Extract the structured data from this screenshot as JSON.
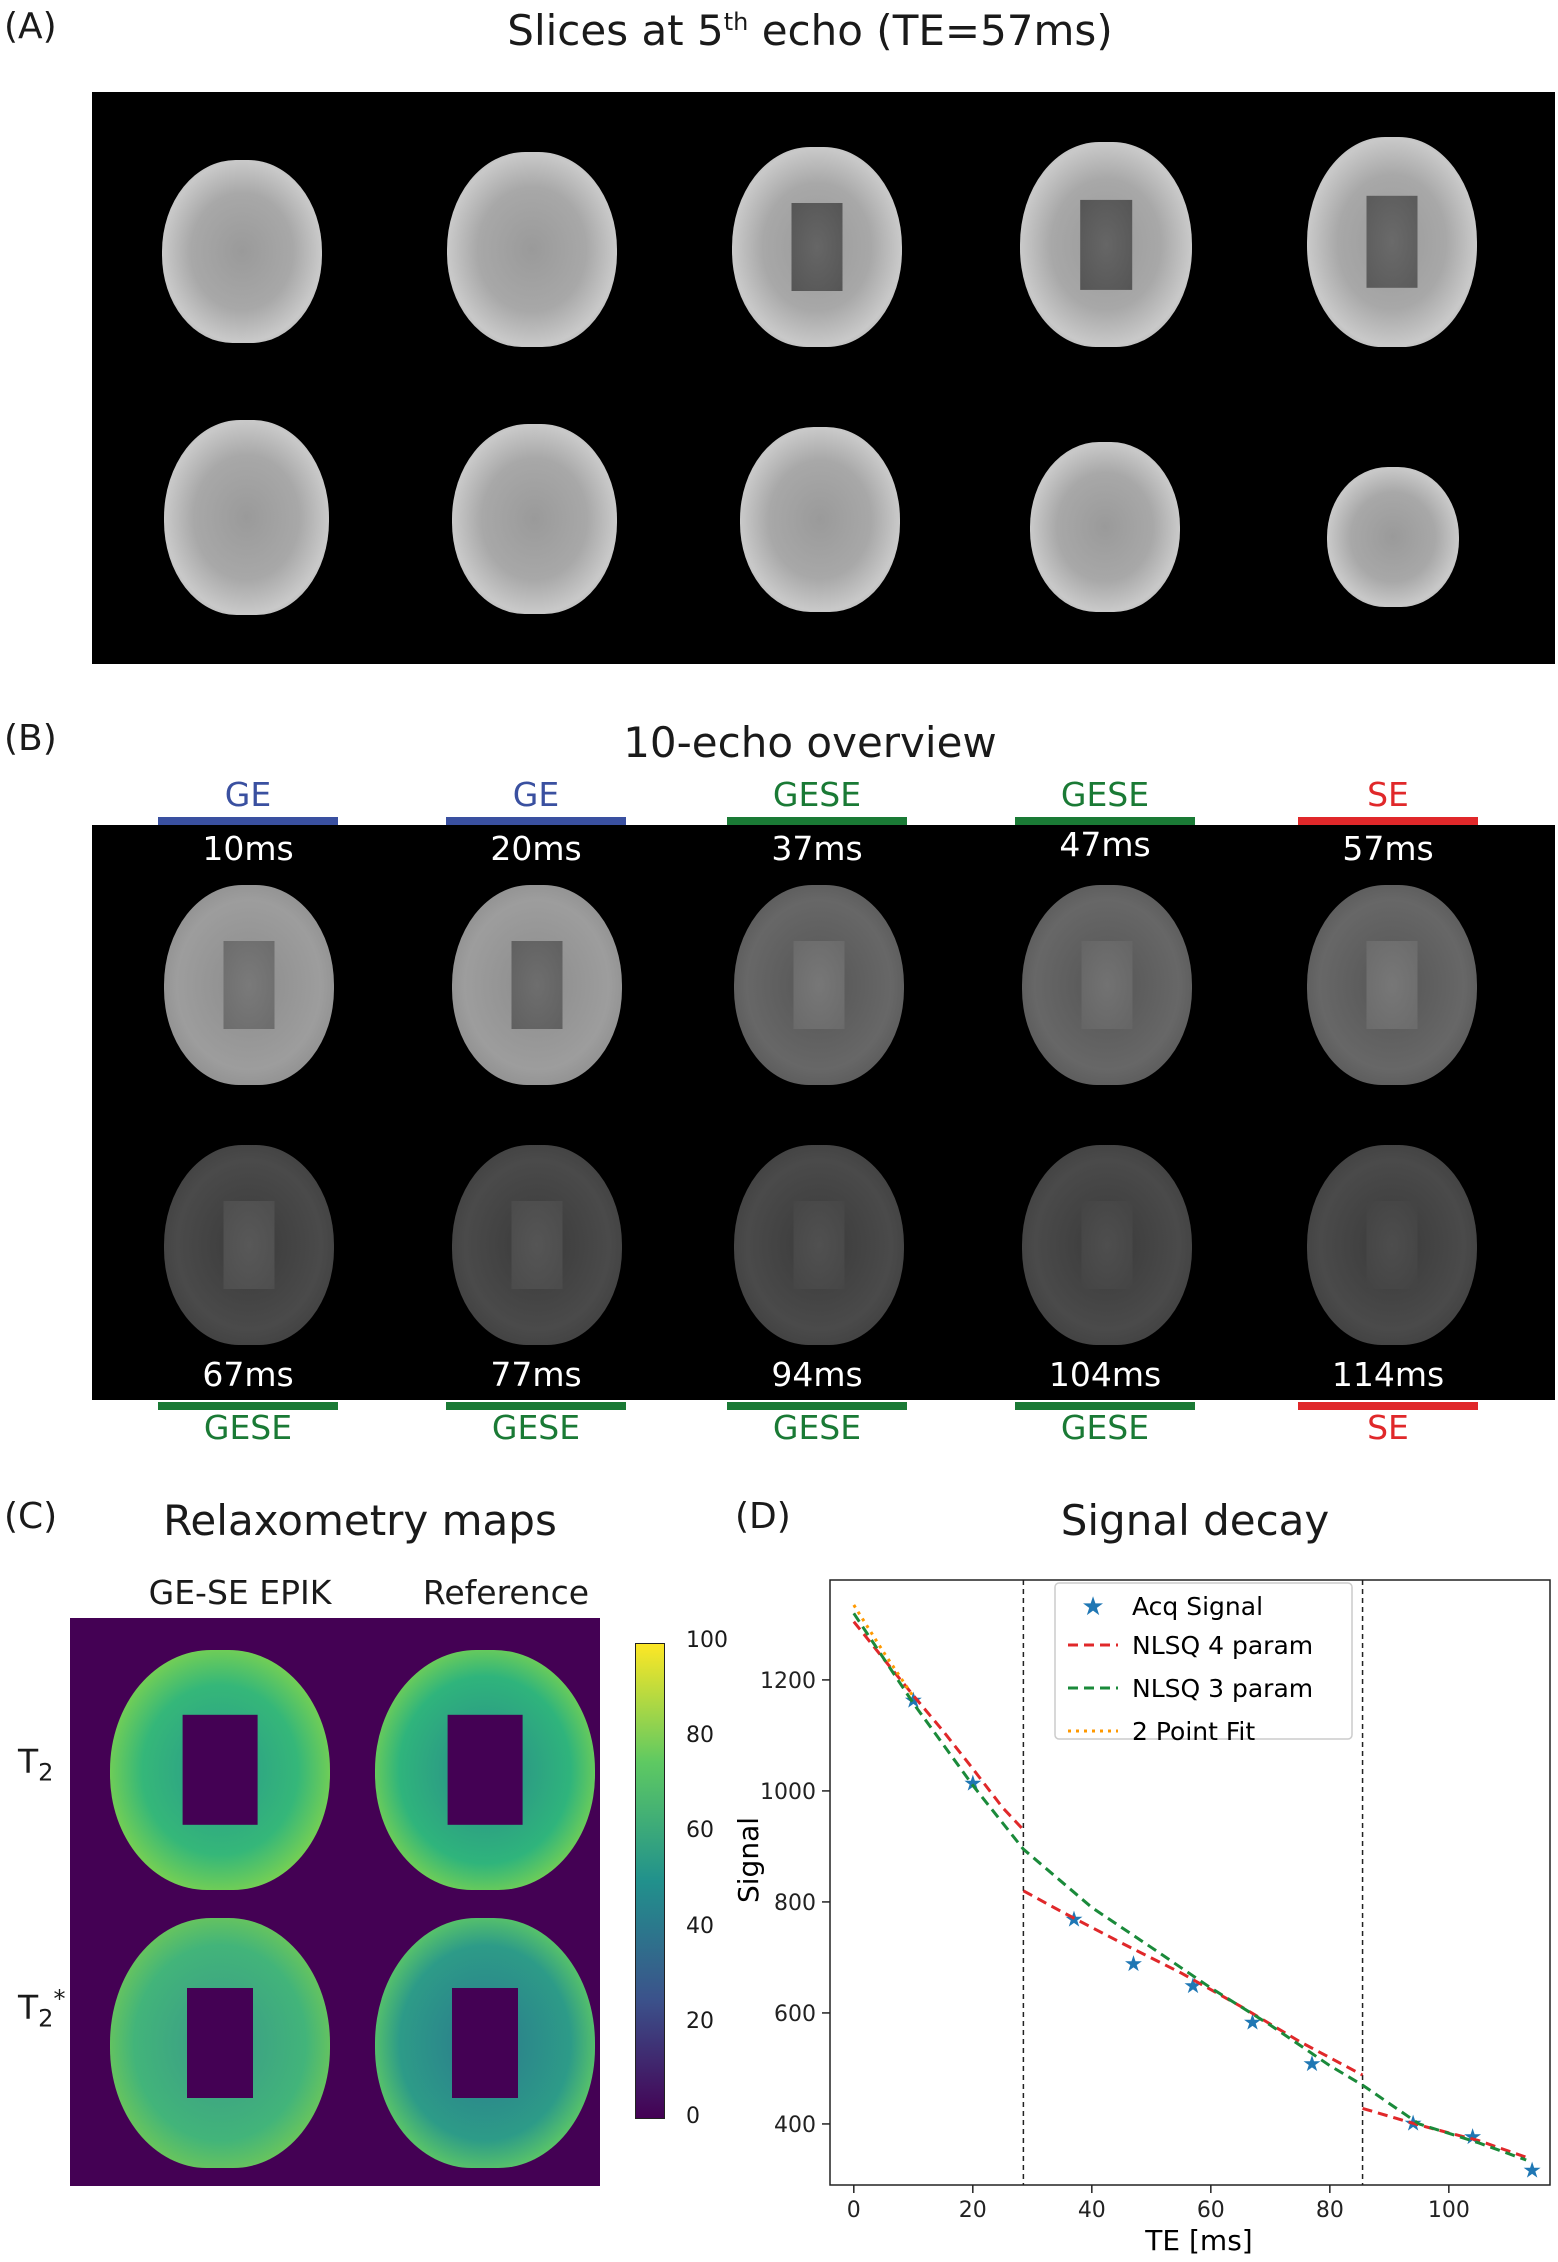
{
  "panelA": {
    "letter": "(A)",
    "title": "Slices at 5",
    "title_sup": "th",
    "title_rest": " echo (TE=57ms)"
  },
  "panelB": {
    "letter": "(B)",
    "title": "10-echo overview",
    "top": [
      {
        "seq": "GE",
        "te": "10ms",
        "color": "#3a50a0"
      },
      {
        "seq": "GE",
        "te": "20ms",
        "color": "#3a50a0"
      },
      {
        "seq": "GESE",
        "te": "37ms",
        "color": "#1a7a35"
      },
      {
        "seq": "GESE",
        "te": "47ms",
        "color": "#1a7a35"
      },
      {
        "seq": "SE",
        "te": "57ms",
        "color": "#e0282a"
      }
    ],
    "bottom": [
      {
        "seq": "GESE",
        "te": "67ms",
        "color": "#1a7a35"
      },
      {
        "seq": "GESE",
        "te": "77ms",
        "color": "#1a7a35"
      },
      {
        "seq": "GESE",
        "te": "94ms",
        "color": "#1a7a35"
      },
      {
        "seq": "GESE",
        "te": "104ms",
        "color": "#1a7a35"
      },
      {
        "seq": "SE",
        "te": "114ms",
        "color": "#e0282a"
      }
    ]
  },
  "panelC": {
    "letter": "(C)",
    "title": "Relaxometry maps",
    "col1": "GE-SE EPIK",
    "col2": "Reference",
    "row1": "T",
    "row1_sub": "2",
    "row2": "T",
    "row2_sub": "2",
    "row2_sup": "*",
    "colorbar_ticks": [
      "100",
      "80",
      "60",
      "40",
      "20",
      "0"
    ]
  },
  "panelD": {
    "letter": "(D)",
    "title": "Signal decay",
    "legend": [
      "Acq Signal",
      "NLSQ 4 param",
      "NLSQ 3 param",
      "2 Point Fit"
    ]
  },
  "chart_data": {
    "type": "scatter",
    "title": "Signal decay",
    "xlabel": "TE [ms]",
    "ylabel": "Signal",
    "xlim": [
      -4,
      117
    ],
    "ylim": [
      290,
      1380
    ],
    "xticks": [
      0,
      20,
      40,
      60,
      80,
      100
    ],
    "yticks": [
      400,
      600,
      800,
      1000,
      1200
    ],
    "vlines": [
      28.5,
      85.5
    ],
    "legend_position": "top-right",
    "series": [
      {
        "name": "Acq Signal",
        "kind": "points",
        "color": "#1f77b4",
        "x": [
          10,
          20,
          37,
          47,
          57,
          67,
          77,
          94,
          104,
          114
        ],
        "y": [
          1165,
          1015,
          770,
          690,
          650,
          585,
          510,
          403,
          378,
          318
        ]
      },
      {
        "name": "NLSQ 4 param",
        "kind": "dashed",
        "color": "#e0282a",
        "segments": [
          {
            "x": [
              0,
              5,
              10,
              15,
              20,
              25,
              28.5
            ],
            "y": [
              1305,
              1238,
              1172,
              1108,
              1040,
              970,
              930
            ]
          },
          {
            "x": [
              28.5,
              35,
              45,
              55,
              65,
              75,
              85.5
            ],
            "y": [
              820,
              782,
              726,
              672,
              612,
              548,
              488
            ]
          },
          {
            "x": [
              85.5,
              95,
              105,
              113
            ],
            "y": [
              428,
              398,
              370,
              340
            ]
          }
        ]
      },
      {
        "name": "NLSQ 3 param",
        "kind": "dashed",
        "color": "#1a8a3a",
        "segments": [
          {
            "x": [
              0,
              10,
              20,
              28.5,
              40,
              50,
              60,
              70,
              80,
              85.5,
              95,
              105,
              113
            ],
            "y": [
              1320,
              1158,
              1010,
              895,
              790,
              718,
              645,
              578,
              505,
              470,
              400,
              366,
              335
            ]
          }
        ]
      },
      {
        "name": "2 Point Fit",
        "kind": "dotted",
        "color": "#ff9900",
        "segments": [
          {
            "x": [
              0,
              5,
              10
            ],
            "y": [
              1335,
              1250,
              1170
            ]
          }
        ]
      }
    ]
  }
}
